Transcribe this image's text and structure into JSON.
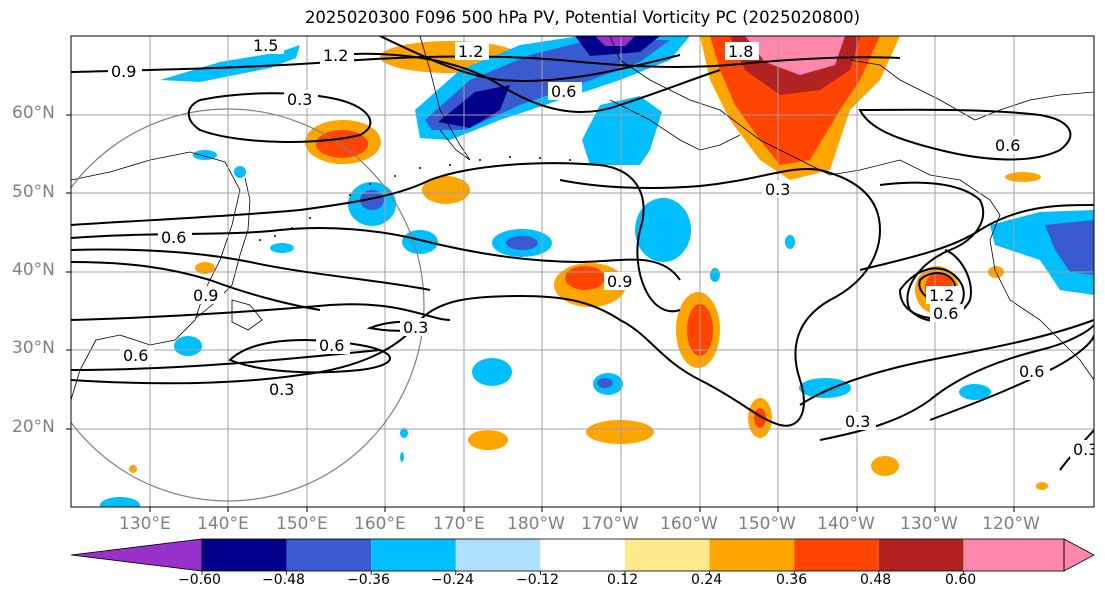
{
  "title": "2025020300 F096 500 hPa PV, Potential Vorticity PC (2025020800)",
  "lat_labels": [
    "60°N",
    "50°N",
    "40°N",
    "30°N",
    "20°N"
  ],
  "lon_labels": [
    "130°E",
    "140°E",
    "150°E",
    "160°E",
    "170°E",
    "180°W",
    "170°W",
    "160°W",
    "150°W",
    "140°W",
    "130°W",
    "120°W"
  ],
  "contour_labels": [
    "1.5",
    "1.2",
    "0.9",
    "1.2",
    "1.8",
    "0.3",
    "0.6",
    "0.6",
    "0.6",
    "0.9",
    "0.9",
    "0.3",
    "0.6",
    "1.2",
    "0.6",
    "0.6",
    "0.3",
    "0.3",
    "0.6",
    "0.3",
    "0.3"
  ],
  "colorbar": {
    "ticks": [
      "−0.60",
      "−0.48",
      "−0.36",
      "−0.24",
      "−0.12",
      "0.12",
      "0.24",
      "0.36",
      "0.48",
      "0.60"
    ],
    "colors": [
      "#9932cc",
      "#00008b",
      "#3a5bd0",
      "#00bfff",
      "#b0e0ff",
      "#ffffff",
      "#ffe98a",
      "#ffa500",
      "#ff4500",
      "#b22222",
      "#ff88aa"
    ]
  }
}
